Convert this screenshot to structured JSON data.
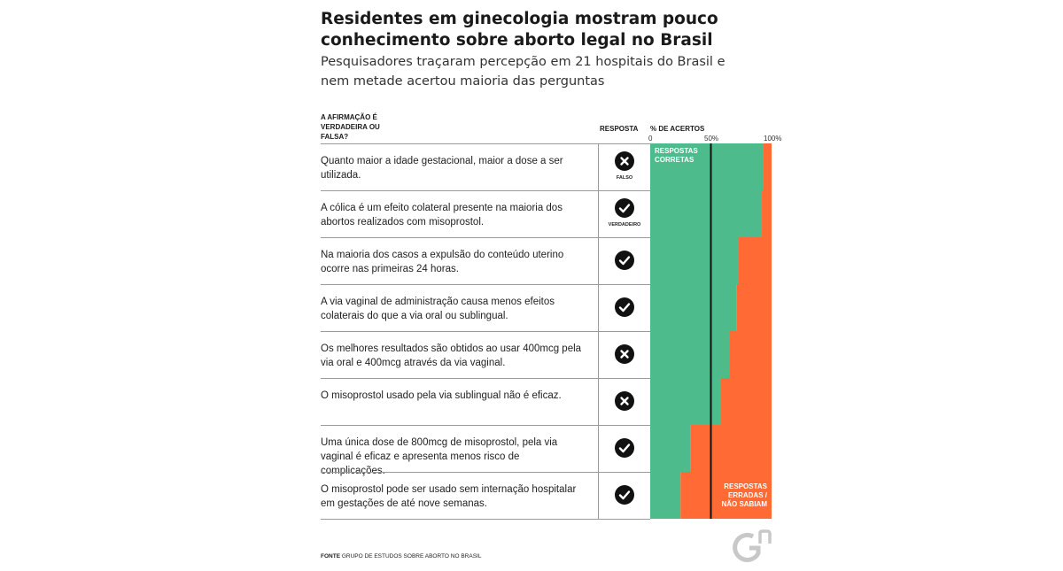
{
  "header": {
    "title": "Residentes em ginecologia mostram pouco conhecimento sobre aborto legal no Brasil",
    "subtitle": "Pesquisadores traçaram percepção em 21 hospitais do Brasil e nem metade acertou maioria das perguntas"
  },
  "columns": {
    "statement": "A AFIRMAÇÃO É VERDADEIRA OU FALSA?",
    "answer": "RESPOSTA",
    "percent": "% DE ACERTOS"
  },
  "answer_labels": {
    "false": "FALSO",
    "true": "VERDADEIRO"
  },
  "rows": [
    {
      "statement": "Quanto maior a idade gestacional, maior a dose a ser utilizada.",
      "answer": "false",
      "correct": 93,
      "show_label": true
    },
    {
      "statement": "A cólica é um efeito colateral presente na maioria dos abortos realizados com misoprostol.",
      "answer": "true",
      "correct": 92,
      "show_label": true
    },
    {
      "statement": "Na maioria dos casos a expulsão do conteúdo uterino ocorre nas primeiras 24 horas.",
      "answer": "true",
      "correct": 73,
      "show_label": false
    },
    {
      "statement": "A via vaginal de administração causa menos efeitos colaterais do que a via oral ou  sublingual.",
      "answer": "true",
      "correct": 71,
      "show_label": false
    },
    {
      "statement": "Os melhores resultados são obtidos ao usar 400mcg pela via oral e 400mcg  através da via vaginal.",
      "answer": "false",
      "correct": 65,
      "show_label": false
    },
    {
      "statement": "O misoprostol usado pela via sublingual não é eficaz.",
      "answer": "false",
      "correct": 58,
      "show_label": false
    },
    {
      "statement": "Uma única dose de 800mcg de misoprostol, pela via vaginal é eficaz e apresenta menos risco de complicações.",
      "answer": "true",
      "correct": 33,
      "show_label": false
    },
    {
      "statement": "O misoprostol pode ser usado sem internação hospitalar em gestações de até nove semanas.",
      "answer": "true",
      "correct": 25,
      "show_label": false
    }
  ],
  "chart_data": {
    "type": "bar",
    "orientation": "horizontal-stacked",
    "xlim": [
      0,
      100
    ],
    "ticks": [
      "0",
      "50%",
      "100%"
    ],
    "reference_line": 50,
    "series": [
      {
        "name": "RESPOSTAS CORRETAS",
        "values": [
          93,
          92,
          73,
          71,
          65,
          58,
          33,
          25
        ]
      },
      {
        "name": "RESPOSTAS ERRADAS / NÃO SABIAM",
        "values": [
          7,
          8,
          27,
          29,
          35,
          42,
          67,
          75
        ]
      }
    ],
    "colors": {
      "correct": "#4dbb8c",
      "wrong": "#ff6a35",
      "reference": "#111111"
    }
  },
  "labels": {
    "correct_l1": "RESPOSTAS",
    "correct_l2": "CORRETAS",
    "wrong_l1": "RESPOSTAS",
    "wrong_l2": "ERRADAS /",
    "wrong_l3": "NÃO SABIAM"
  },
  "footer": {
    "source_bold": "FONTE",
    "source_text": "GRUPO DE ESTUDOS SOBRE ABORTO NO BRASIL",
    "logo_text": "Gn"
  }
}
